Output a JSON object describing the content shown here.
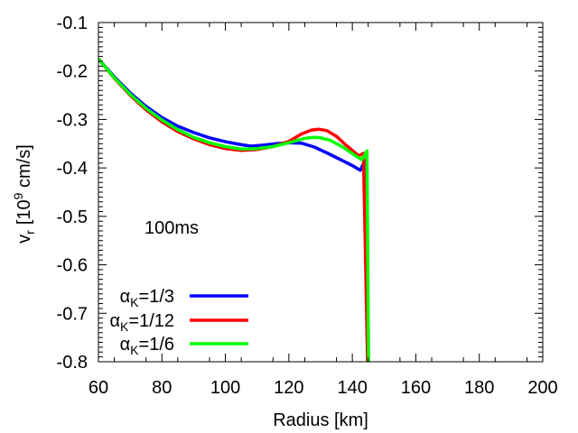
{
  "chart_data": {
    "type": "line",
    "title": "",
    "xlabel": "Radius [km]",
    "ylabel": {
      "main": "v",
      "sub": "r",
      "unit_pre": "[10",
      "unit_sup": "9",
      "unit_post": " cm/s]"
    },
    "xlim": [
      60,
      200
    ],
    "ylim": [
      -0.8,
      -0.1
    ],
    "xticks": [
      60,
      80,
      100,
      120,
      140,
      160,
      180,
      200
    ],
    "yticks": [
      -0.1,
      -0.2,
      -0.3,
      -0.4,
      -0.5,
      -0.6,
      -0.7,
      -0.8
    ],
    "xtick_labels": [
      "60",
      "80",
      "100",
      "120",
      "140",
      "160",
      "180",
      "200"
    ],
    "ytick_labels": [
      "-0.1",
      "-0.2",
      "-0.3",
      "-0.4",
      "-0.5",
      "-0.6",
      "-0.7",
      "-0.8"
    ],
    "annotation": "100ms",
    "grid": false,
    "legend_position": "bottom-left",
    "series": [
      {
        "name": "αK=1/3",
        "label_main": "α",
        "label_sub": "K",
        "label_rest": "=1/3",
        "color": "#0000ff",
        "x": [
          60,
          65,
          70,
          75,
          80,
          85,
          90,
          95,
          100,
          105,
          108,
          112,
          116,
          120,
          124,
          128,
          132,
          136,
          140,
          142.5,
          144,
          144.8,
          145.2
        ],
        "y": [
          -0.175,
          -0.212,
          -0.245,
          -0.273,
          -0.296,
          -0.314,
          -0.327,
          -0.338,
          -0.346,
          -0.352,
          -0.355,
          -0.353,
          -0.35,
          -0.348,
          -0.349,
          -0.357,
          -0.369,
          -0.382,
          -0.395,
          -0.405,
          -0.385,
          -0.8,
          -0.8
        ]
      },
      {
        "name": "αK=1/12",
        "label_main": "α",
        "label_sub": "K",
        "label_rest": "=1/12",
        "color": "#ff0000",
        "x": [
          60,
          65,
          70,
          75,
          80,
          85,
          90,
          95,
          100,
          105,
          110,
          115,
          120,
          124,
          127,
          129.5,
          132,
          135,
          138,
          142,
          143.5,
          144.8,
          145.2
        ],
        "y": [
          -0.175,
          -0.215,
          -0.25,
          -0.28,
          -0.305,
          -0.325,
          -0.34,
          -0.352,
          -0.36,
          -0.364,
          -0.362,
          -0.356,
          -0.345,
          -0.33,
          -0.322,
          -0.32,
          -0.323,
          -0.335,
          -0.353,
          -0.375,
          -0.37,
          -0.8,
          -0.8
        ]
      },
      {
        "name": "αK=1/6",
        "label_main": "α",
        "label_sub": "K",
        "label_rest": "=1/6",
        "color": "#00ff00",
        "x": [
          60,
          65,
          70,
          75,
          80,
          85,
          90,
          95,
          100,
          105,
          110,
          115,
          120,
          125,
          128,
          130,
          133,
          137,
          141,
          143,
          144.6,
          145.1,
          145.5
        ],
        "y": [
          -0.175,
          -0.214,
          -0.248,
          -0.277,
          -0.301,
          -0.321,
          -0.337,
          -0.348,
          -0.356,
          -0.361,
          -0.36,
          -0.356,
          -0.348,
          -0.339,
          -0.337,
          -0.338,
          -0.343,
          -0.357,
          -0.375,
          -0.383,
          -0.365,
          -0.8,
          -0.8
        ]
      }
    ]
  }
}
